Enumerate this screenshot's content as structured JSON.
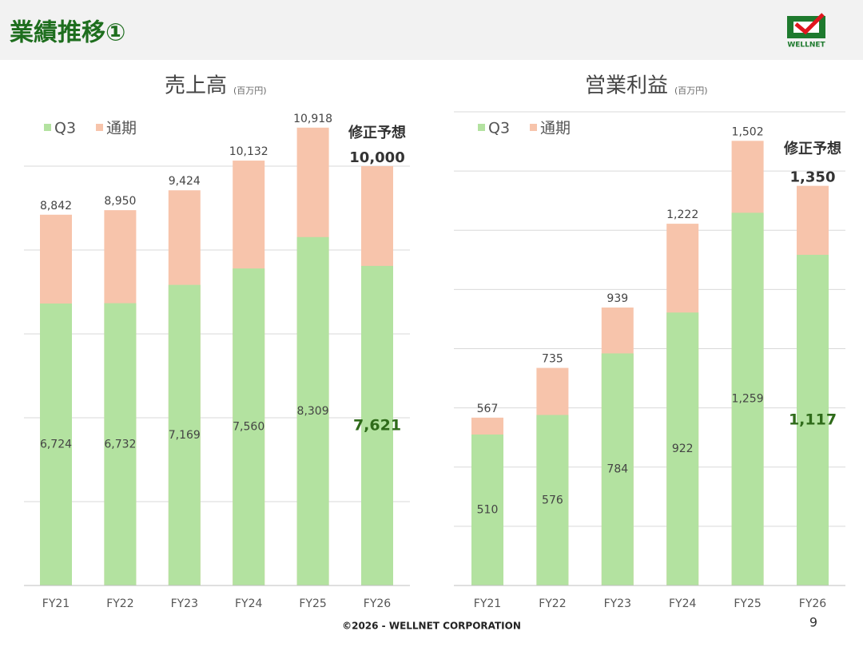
{
  "header": {
    "title": "業績推移①",
    "logo": "WELLNET"
  },
  "footer": {
    "copyright": "©2026 - WELLNET CORPORATION",
    "page": "9"
  },
  "chart_data": [
    {
      "type": "bar",
      "title": "売上高",
      "subtitle": "(百万円)",
      "categories": [
        "FY21",
        "FY22",
        "FY23",
        "FY24",
        "FY25",
        "FY26"
      ],
      "series": [
        {
          "name": "Q3",
          "color": "#b3e2a0",
          "values": [
            6724,
            6732,
            7169,
            7560,
            8309,
            7621
          ],
          "value_labels": [
            "6,724",
            "6,732",
            "7,169",
            "7,560",
            "8,309",
            "7,621"
          ]
        },
        {
          "name": "通期",
          "color": "#f7c4ab",
          "values": [
            8842,
            8950,
            9424,
            10132,
            10918,
            10000
          ],
          "value_labels": [
            "8,842",
            "8,950",
            "9,424",
            "10,132",
            "10,918",
            "10,000"
          ]
        }
      ],
      "annotation": "修正予想",
      "ylim": [
        0,
        10000
      ],
      "yticks": [
        0,
        2000,
        4000,
        6000,
        8000,
        10000
      ],
      "grid": true,
      "legend": "top-left"
    },
    {
      "type": "bar",
      "title": "営業利益",
      "subtitle": "(百万円)",
      "categories": [
        "FY21",
        "FY22",
        "FY23",
        "FY24",
        "FY25",
        "FY26"
      ],
      "series": [
        {
          "name": "Q3",
          "color": "#b3e2a0",
          "values": [
            510,
            576,
            784,
            922,
            1259,
            1117
          ],
          "value_labels": [
            "510",
            "576",
            "784",
            "922",
            "1,259",
            "1,117"
          ]
        },
        {
          "name": "通期",
          "color": "#f7c4ab",
          "values": [
            567,
            735,
            939,
            1222,
            1502,
            1350
          ],
          "value_labels": [
            "567",
            "735",
            "939",
            "1,222",
            "1,502",
            "1,350"
          ]
        }
      ],
      "annotation": "修正予想",
      "ylim": [
        0,
        1600
      ],
      "yticks": [
        0,
        200,
        400,
        600,
        800,
        1000,
        1200,
        1400,
        1600
      ],
      "grid": true,
      "legend": "top-left"
    }
  ]
}
